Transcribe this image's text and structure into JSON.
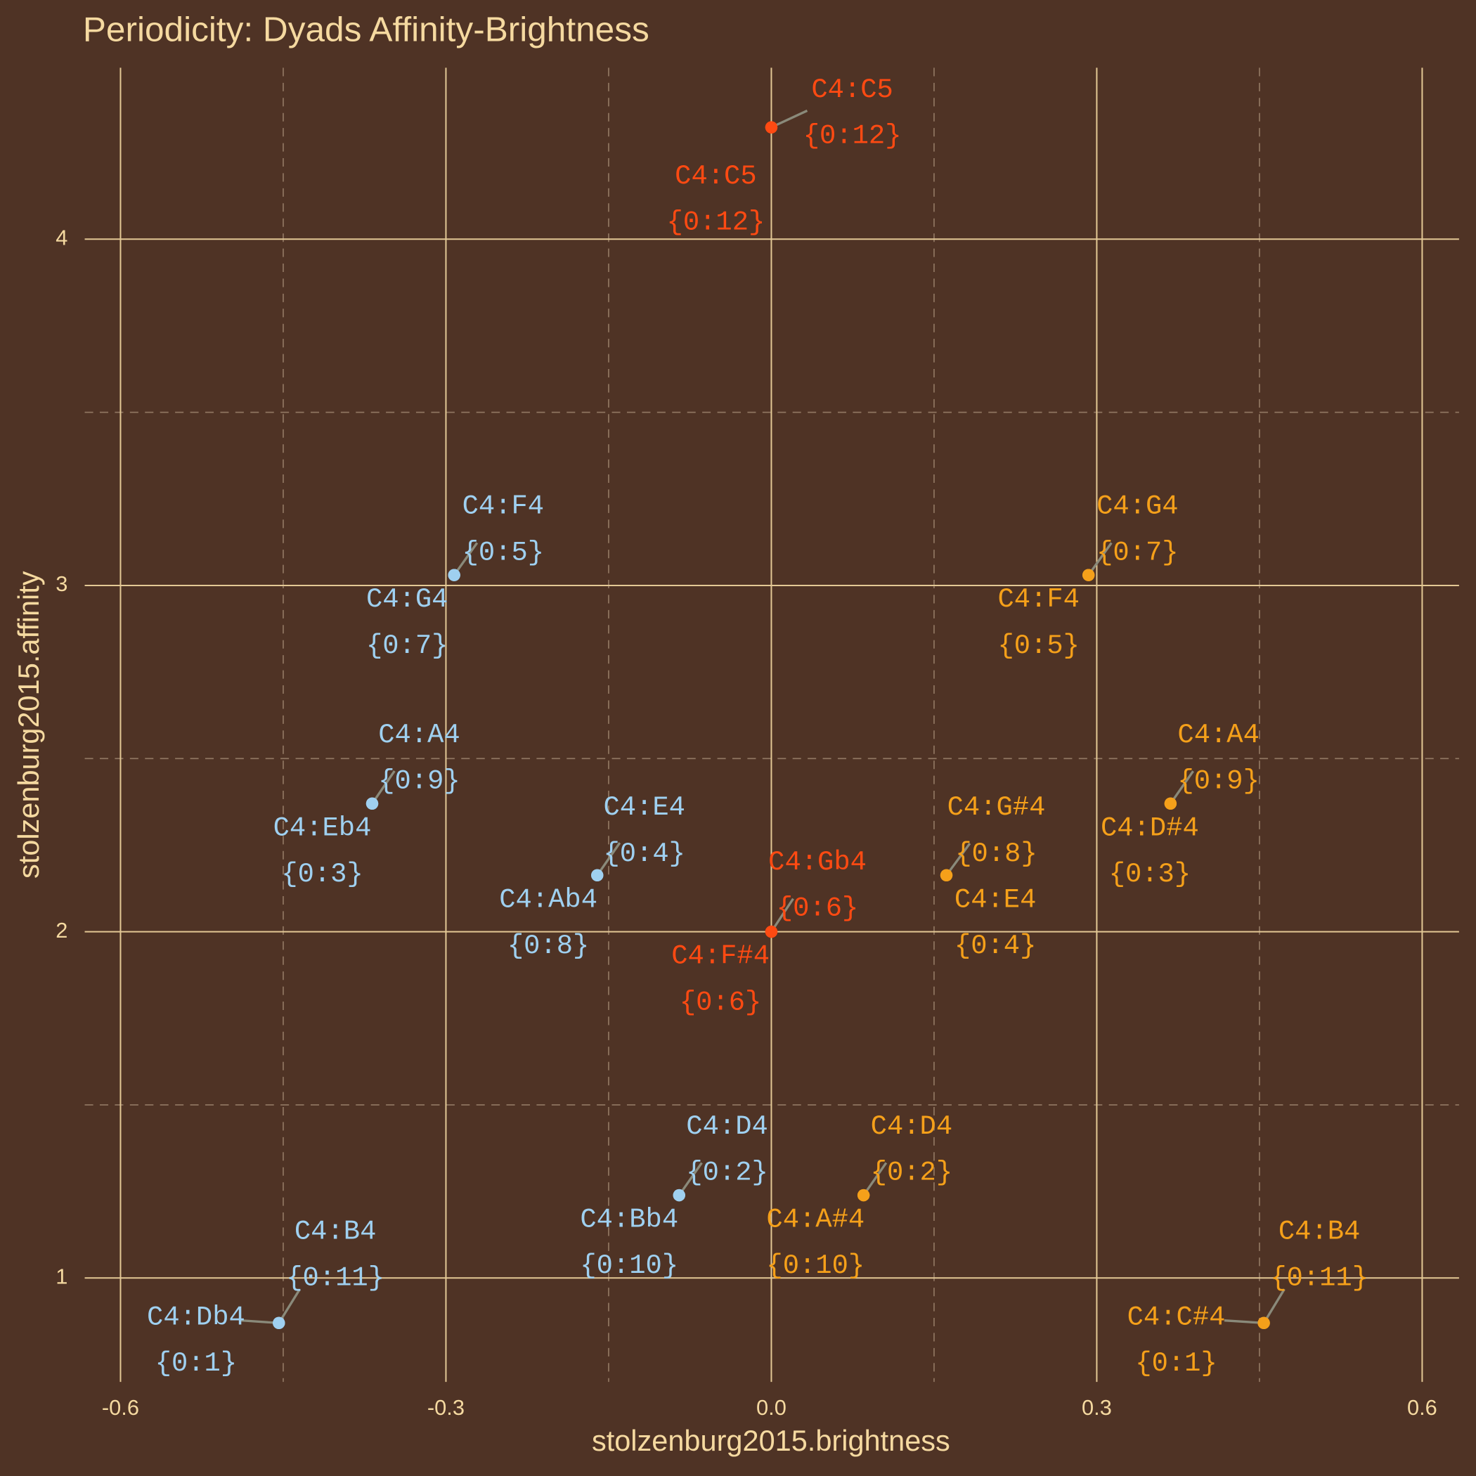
{
  "chart_data": {
    "type": "scatter",
    "title": "Periodicity: Dyads Affinity-Brightness",
    "xlabel": "stolzenburg2015.brightness",
    "ylabel": "stolzenburg2015.affinity",
    "xlim": [
      -0.633,
      0.634
    ],
    "ylim": [
      0.7,
      4.495
    ],
    "xticks": [
      -0.6,
      -0.3,
      {
        "value": 0,
        "label": "0.0"
      },
      0.3,
      0.6
    ],
    "yticks": [
      1,
      2,
      3,
      4
    ],
    "xminor": [
      -0.45,
      -0.15,
      0.15,
      0.45
    ],
    "yminor": [
      1.5,
      2.5,
      3.5
    ],
    "grid": true,
    "series": [
      {
        "color": "#ff4a12",
        "x": [
          0,
          0,
          0,
          0
        ],
        "values": [
          4.323,
          4.323,
          2,
          2
        ],
        "labels": [
          "C4:C5",
          "C4:C5",
          "C4:Gb4",
          "C4:F#4"
        ],
        "sublabels": [
          "{0:12}",
          "{0:12}",
          "{0:6}",
          "{0:6}"
        ]
      },
      {
        "color": "#9fd0f0",
        "x": [
          -0.2924,
          -0.2924,
          -0.368,
          -0.368,
          -0.1605,
          -0.1605,
          -0.085,
          -0.085,
          -0.454,
          -0.454
        ],
        "values": [
          3.03,
          3.03,
          2.37,
          2.37,
          2.163,
          2.163,
          1.239,
          1.239,
          0.87,
          0.87
        ],
        "labels": [
          "C4:F4",
          "C4:G4",
          "C4:A4",
          "C4:Eb4",
          "C4:E4",
          "C4:Ab4",
          "C4:D4",
          "C4:Bb4",
          "C4:B4",
          "C4:Db4"
        ],
        "sublabels": [
          "{0:5}",
          "{0:7}",
          "{0:9}",
          "{0:3}",
          "{0:4}",
          "{0:8}",
          "{0:2}",
          "{0:10}",
          "{0:11}",
          "{0:1}"
        ]
      },
      {
        "color": "#f5a01a",
        "x": [
          0.2924,
          0.2924,
          0.368,
          0.368,
          0.1614,
          0.1614,
          0.085,
          0.085,
          0.454,
          0.454
        ],
        "values": [
          3.03,
          3.03,
          2.37,
          2.37,
          2.163,
          2.163,
          1.239,
          1.239,
          0.87,
          0.87
        ],
        "labels": [
          "C4:G4",
          "C4:F4",
          "C4:A4",
          "C4:D#4",
          "C4:G#4",
          "C4:E4",
          "C4:D4",
          "C4:A#4",
          "C4:B4",
          "C4:C#4"
        ],
        "sublabels": [
          "{0:7}",
          "{0:5}",
          "{0:9}",
          "{0:3}",
          "{0:8}",
          "{0:4}",
          "{0:2}",
          "{0:10}",
          "{0:11}",
          "{0:1}"
        ]
      }
    ]
  }
}
